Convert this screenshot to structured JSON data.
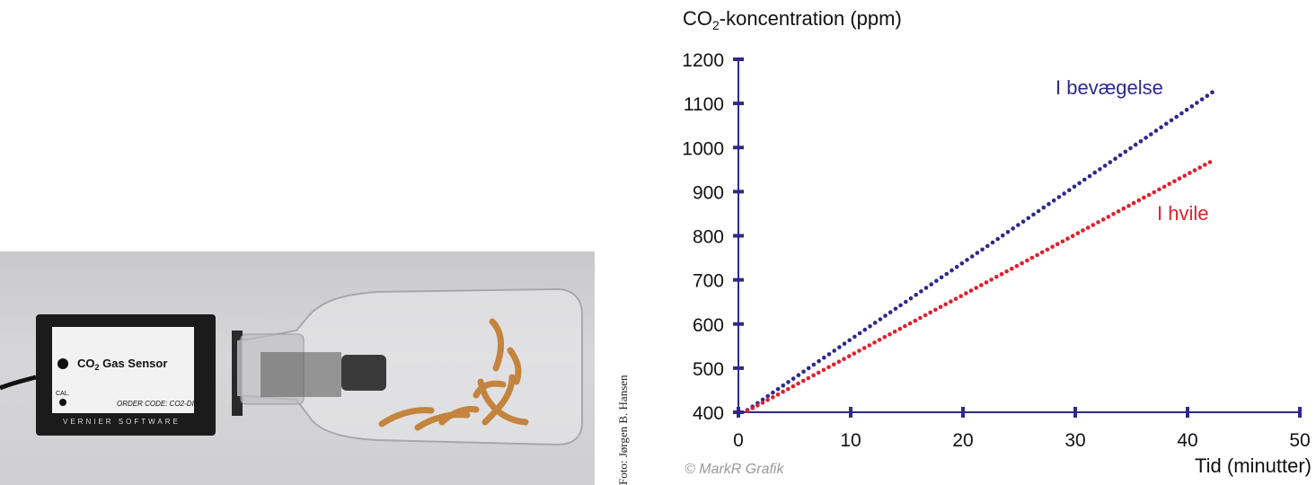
{
  "photo": {
    "sensor_label_prefix": "CO",
    "sensor_label_sub": "2",
    "sensor_label_suffix": " Gas Sensor",
    "order_code": "ORDER CODE: CO2-DIN",
    "brand": "VERNIER SOFTWARE",
    "cal_label": "CAL.",
    "credit": "Foto: Jørgen B. Hansen"
  },
  "copyright": "© MarkR Grafik",
  "colors": {
    "moving": "#2e2a8a",
    "resting": "#e0202e",
    "axis": "#2e2a8a"
  },
  "chart_data": {
    "type": "scatter",
    "title": "",
    "ylabel_prefix": "CO",
    "ylabel_sub": "2",
    "ylabel_suffix": "-koncentration (ppm)",
    "xlabel": "Tid (minutter)",
    "xlim": [
      0,
      50
    ],
    "ylim": [
      400,
      1200
    ],
    "xticks": [
      0,
      10,
      20,
      30,
      40,
      50
    ],
    "yticks": [
      400,
      500,
      600,
      700,
      800,
      900,
      1000,
      1100,
      1200
    ],
    "grid": false,
    "series": [
      {
        "name": "I bevægelse",
        "color": "#2e2a8a",
        "x_start": 0.8,
        "x_end": 42.2,
        "y_start": 405,
        "y_end": 1125,
        "points": 92
      },
      {
        "name": "I hvile",
        "color": "#e0202e",
        "x_start": 0.8,
        "x_end": 42.0,
        "y_start": 403,
        "y_end": 967,
        "points": 92
      }
    ]
  }
}
